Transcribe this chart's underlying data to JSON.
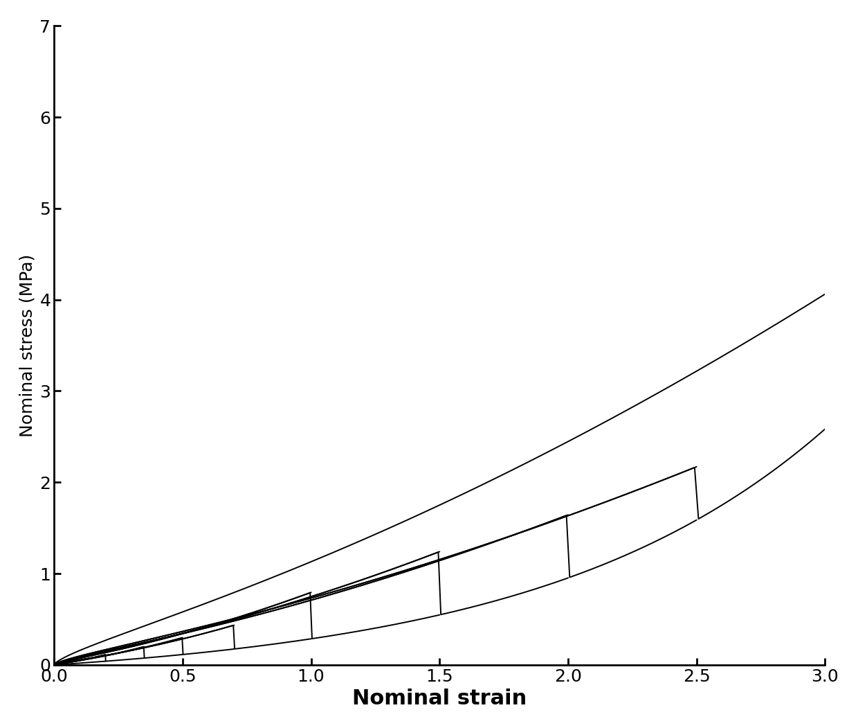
{
  "xlabel": "Nominal strain",
  "ylabel": "Nominal stress (MPa)",
  "xlim": [
    0,
    3.0
  ],
  "ylim": [
    0,
    7
  ],
  "xticks": [
    0,
    0.5,
    1.0,
    1.5,
    2.0,
    2.5,
    3.0
  ],
  "yticks": [
    0,
    1,
    2,
    3,
    4,
    5,
    6,
    7
  ],
  "xlabel_fontsize": 22,
  "ylabel_fontsize": 18,
  "tick_fontsize": 18,
  "line_color": "#000000",
  "line_width": 1.4,
  "background_color": "#ffffff",
  "cycles": [
    {
      "max_strain": 0.2,
      "max_stress": 0.18
    },
    {
      "max_strain": 0.35,
      "max_stress": 0.32
    },
    {
      "max_strain": 0.5,
      "max_stress": 0.48
    },
    {
      "max_strain": 0.7,
      "max_stress": 0.7
    },
    {
      "max_strain": 1.0,
      "max_stress": 1.28
    },
    {
      "max_strain": 1.5,
      "max_stress": 2.0
    },
    {
      "max_strain": 2.0,
      "max_stress": 2.65
    },
    {
      "max_strain": 2.5,
      "max_stress": 3.5
    },
    {
      "max_strain": 3.0,
      "max_stress": 6.55
    }
  ]
}
